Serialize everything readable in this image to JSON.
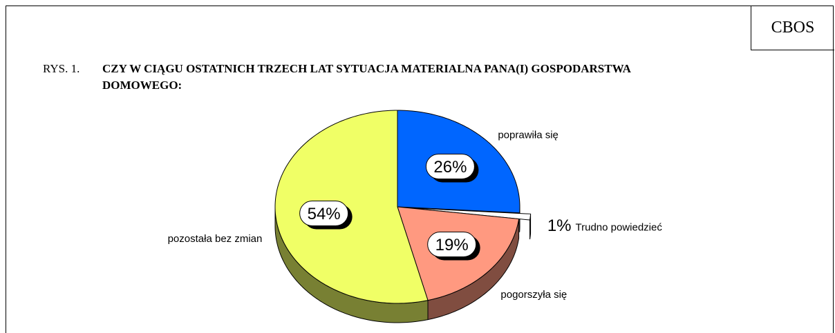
{
  "badge": "CBOS",
  "chart_data": {
    "type": "pie",
    "figure_label": "RYS. 1.",
    "title": "CZY W CIĄGU OSTATNICH TRZECH LAT SYTUACJA MATERIALNA PANA(I) GOSPODARSTWA DOMOWEGO:",
    "categories": [
      "poprawiła się",
      "Trudno powiedzieć",
      "pogorszyła się",
      "pozostała bez zmian"
    ],
    "values": [
      26,
      1,
      19,
      54
    ],
    "value_labels": [
      "26%",
      "1%",
      "19%",
      "54%"
    ],
    "colors": [
      "#0066ff",
      "#ffffff",
      "#ff9980",
      "#f0ff66"
    ],
    "exploded": [
      false,
      true,
      false,
      false
    ]
  }
}
